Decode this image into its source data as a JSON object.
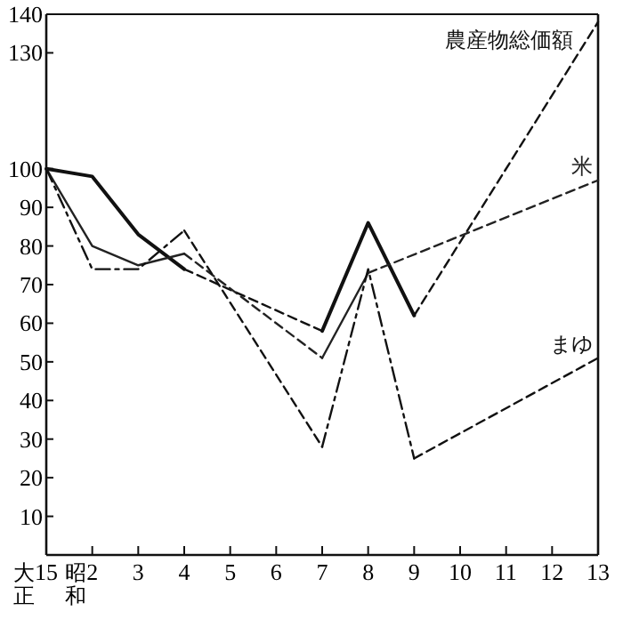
{
  "chart_data": {
    "type": "line",
    "categories": [
      "大正15",
      "昭和2",
      "3",
      "4",
      "5",
      "6",
      "7",
      "8",
      "9",
      "10",
      "11",
      "12",
      "13"
    ],
    "series": [
      {
        "name": "農産物総価額",
        "color": "#111111",
        "line_style": "solid",
        "values": [
          100,
          98,
          83,
          74,
          null,
          null,
          58,
          86,
          62,
          null,
          null,
          null,
          138
        ]
      },
      {
        "name": "米",
        "color": "#222222",
        "line_style": "solid",
        "values": [
          100,
          80,
          75,
          78,
          null,
          null,
          51,
          73,
          null,
          null,
          null,
          null,
          97
        ]
      },
      {
        "name": "まゆ",
        "color": "#111111",
        "line_style": "dashdot",
        "values": [
          100,
          74,
          74,
          84,
          null,
          null,
          28,
          74,
          25,
          null,
          null,
          null,
          51
        ]
      }
    ],
    "ylim": [
      0,
      140
    ],
    "yticks": [
      10,
      20,
      30,
      40,
      50,
      60,
      70,
      80,
      90,
      100,
      130,
      140
    ],
    "grid": false,
    "legend": false
  }
}
